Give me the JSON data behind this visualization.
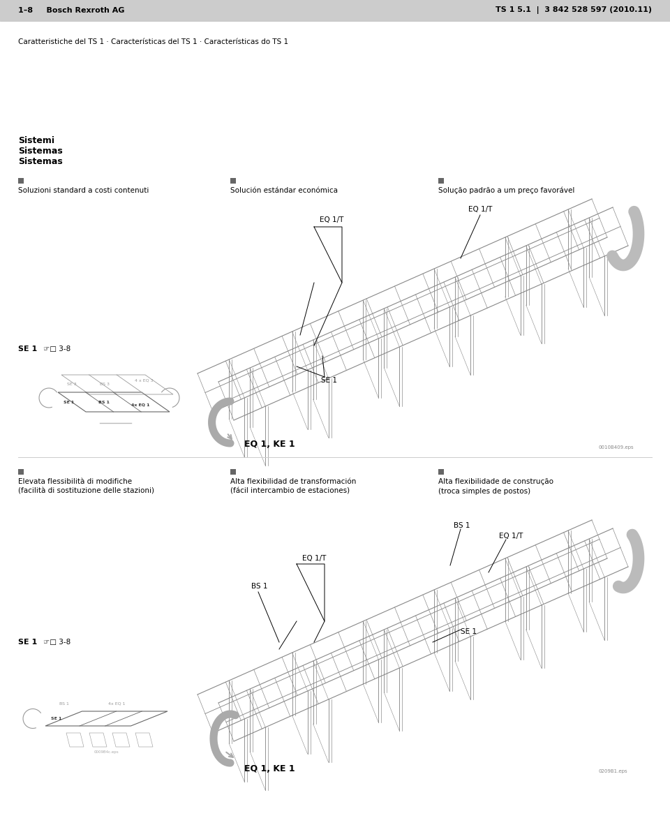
{
  "page_width": 9.6,
  "page_height": 12.02,
  "dpi": 100,
  "bg_color": "#ffffff",
  "header_bg": "#cccccc",
  "header_left": "1–8     Bosch Rexroth AG",
  "header_right": "TS 1 5.1  |  3 842 528 597 (2010.11)",
  "subtitle": "Caratteristiche del TS 1 · Características del TS 1 · Características do TS 1",
  "section_title_1": "Sistemi",
  "section_title_2": "Sistemas",
  "section_title_3": "Sistemas",
  "col1_label": "Soluzioni standard a costi contenuti",
  "col2_label": "Solución estándar económica",
  "col3_label": "Solução padrão a um preço favorável",
  "diagram1_eq1t_1": "EQ 1/T",
  "diagram1_eq1t_2": "EQ 1/T",
  "diagram1_se1": "SE 1",
  "diagram1_ke1": "EQ 1, KE 1",
  "se1_ref": "SE 1  ☞■ 3-8",
  "col1_label2": "Elevata flessibilità di modifiche\n(facilità di sostituzione delle stazioni)",
  "col2_label2": "Alta flexibilidad de transformación\n(fácil intercambio de estaciones)",
  "col3_label2": "Alta flexibilidade de construção\n(troca simples de postos)",
  "diagram2_bs1_1": "BS 1",
  "diagram2_eq1t_1": "EQ 1/T",
  "diagram2_eq1t_2": "EQ 1/T",
  "diagram2_bs1_2": "BS 1",
  "diagram2_se1": "SE 1",
  "diagram2_ke1": "EQ 1, KE 1",
  "se1_ref2": "SE 1  ☞■ 3-8",
  "text_color": "#000000",
  "line_color": "#888888",
  "diagram_color": "#999999"
}
